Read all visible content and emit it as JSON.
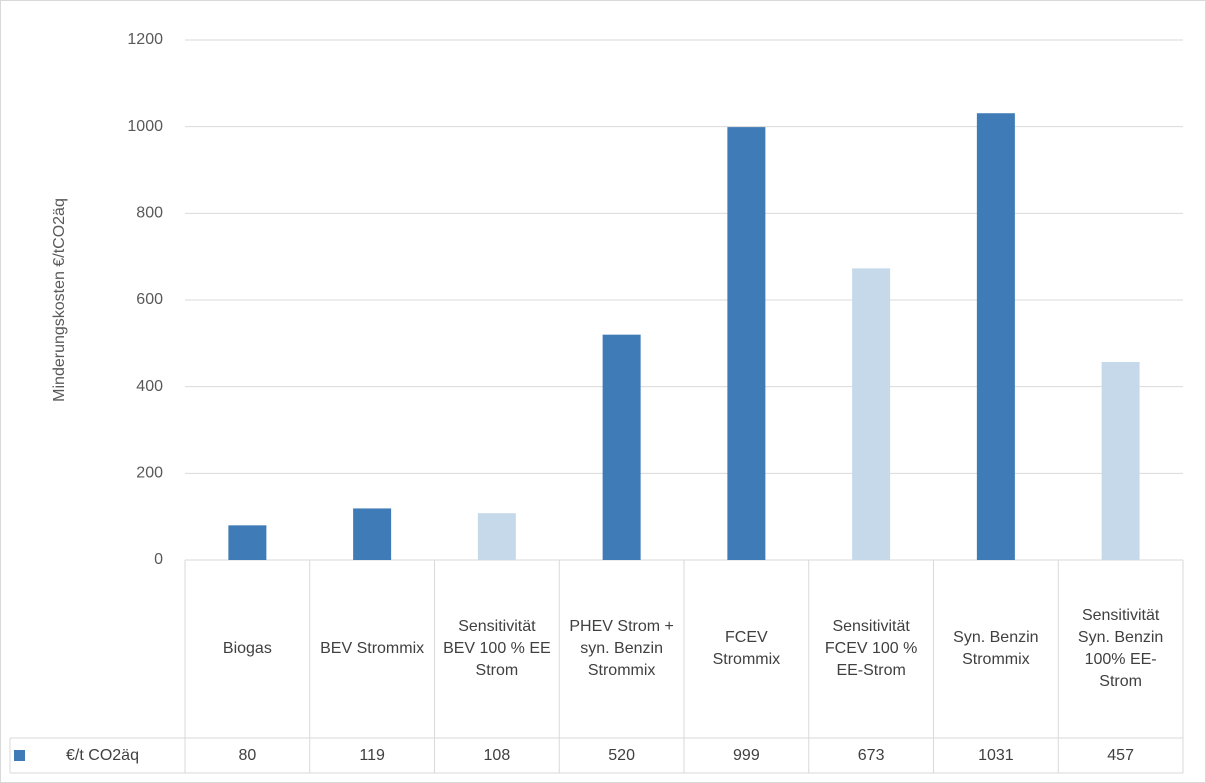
{
  "chart_data": {
    "type": "bar",
    "y_label": "Minderungskosten €/tCO2äq",
    "categories": [
      "Biogas",
      "BEV Strommix",
      "Sensitivität BEV 100 % EE Strom",
      "PHEV Strom + syn. Benzin Strommix",
      "FCEV Strommix",
      "Sensitivität FCEV 100 % EE-Strom",
      "Syn. Benzin Strommix",
      "Sensitivität Syn. Benzin 100% EE-Strom"
    ],
    "series": [
      {
        "name": "€/t CO2äq",
        "color": "#3f7bb6",
        "values": [
          80,
          119,
          108,
          520,
          999,
          673,
          1031,
          457
        ],
        "colors": [
          "#3f7bb6",
          "#3f7bb6",
          "#c6d9ea",
          "#3f7bb6",
          "#3f7bb6",
          "#c6d9ea",
          "#3f7bb6",
          "#c6d9ea"
        ]
      }
    ],
    "ylim": [
      0,
      1200
    ],
    "yticks": [
      0,
      200,
      400,
      600,
      800,
      1000,
      1200
    ],
    "grid": true,
    "data_table": true
  }
}
